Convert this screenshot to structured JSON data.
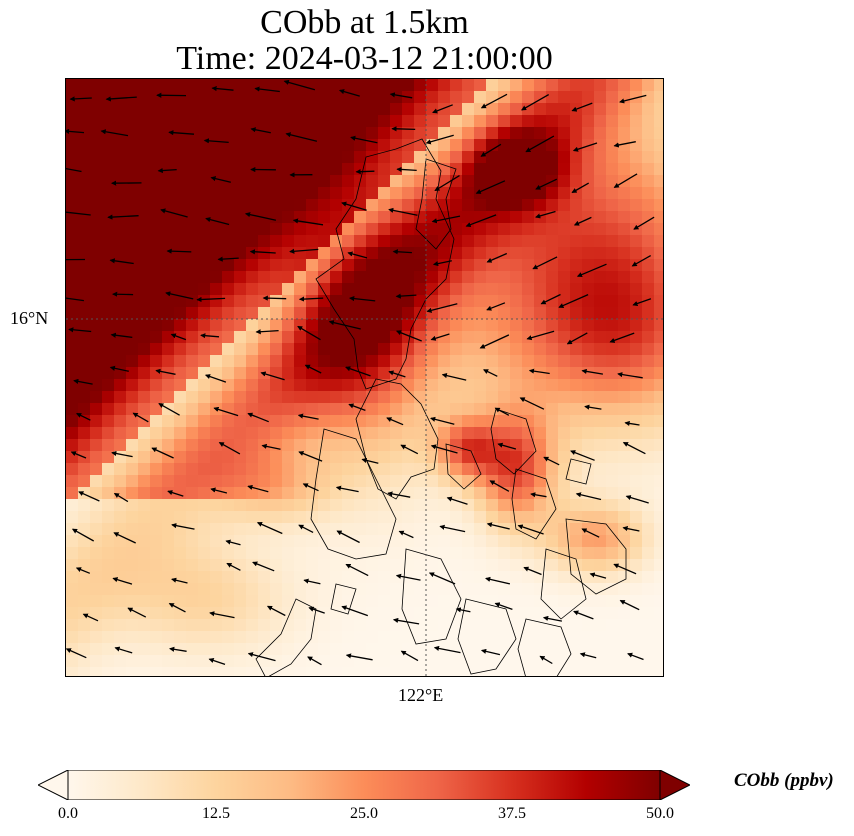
{
  "title": {
    "line1": "CObb at 1.5km",
    "line2": "Time: 2024-03-12 21:00:00"
  },
  "axes": {
    "latitude_label": "16°N",
    "longitude_label": "122°E"
  },
  "colorbar": {
    "label": "CObb (ppbv)",
    "min": 0.0,
    "max": 50.0,
    "extend": "both",
    "colormap": "OrRd",
    "ticks": [
      "0.0",
      "12.5",
      "25.0",
      "37.5",
      "50.0"
    ],
    "colors": [
      "#fff7ec",
      "#fee8c8",
      "#fdd49e",
      "#fdbb84",
      "#fc8d59",
      "#ef6548",
      "#d7301f",
      "#b30000",
      "#7f0000"
    ]
  },
  "map": {
    "field": "CObb",
    "level": "1.5km",
    "gridlines": "dotted",
    "wind_vectors": "shown",
    "coastlines": "shown"
  }
}
